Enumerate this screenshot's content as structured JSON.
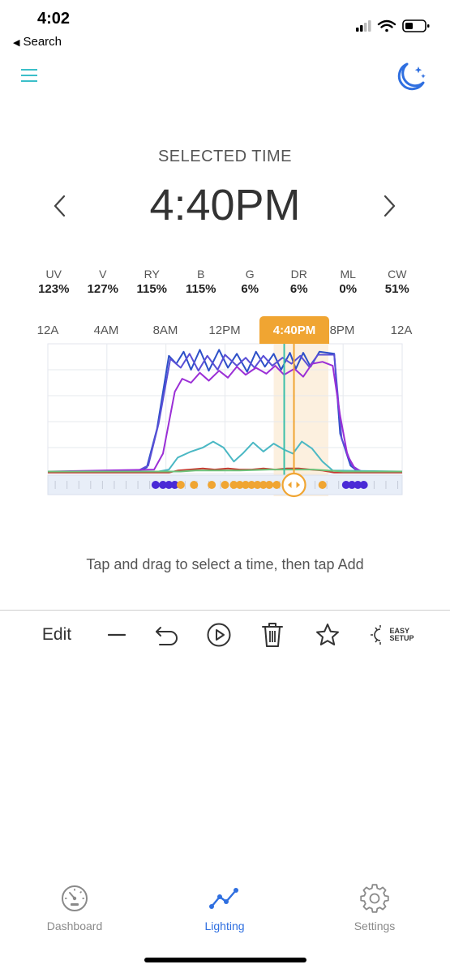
{
  "status_bar": {
    "time": "4:02",
    "back_label": "Search"
  },
  "header": {
    "selected_label": "SELECTED TIME",
    "selected_time": "4:40PM"
  },
  "channels": [
    {
      "name": "UV",
      "value": "123%"
    },
    {
      "name": "V",
      "value": "127%"
    },
    {
      "name": "RY",
      "value": "115%"
    },
    {
      "name": "B",
      "value": "115%"
    },
    {
      "name": "G",
      "value": "6%"
    },
    {
      "name": "DR",
      "value": "6%"
    },
    {
      "name": "ML",
      "value": "0%"
    },
    {
      "name": "CW",
      "value": "51%"
    }
  ],
  "timeline": {
    "labels": [
      "12A",
      "4AM",
      "8AM",
      "12PM",
      "8PM",
      "12A"
    ],
    "selected_badge": "4:40PM"
  },
  "hint": "Tap and drag to select a time, then tap Add",
  "toolbar": {
    "edit_label": "Edit",
    "easy_line1": "EASY",
    "easy_line2": "SETUP"
  },
  "tabs": [
    {
      "label": "Dashboard",
      "icon": "dashboard-gauge-icon"
    },
    {
      "label": "Lighting",
      "icon": "lighting-graph-icon"
    },
    {
      "label": "Settings",
      "icon": "settings-gear-icon"
    }
  ],
  "colors": {
    "accent": "#2f6fe0",
    "selection": "#f0a532",
    "menu": "#3bbfc9",
    "blue_series": "#2d50c8",
    "purple_series": "#9b2fd6",
    "teal_series": "#4bb8c4",
    "red_series": "#c43a2f",
    "green_series": "#6cc27a"
  },
  "chart_data": {
    "type": "line",
    "x_unit": "hour of day",
    "xlim": [
      0,
      24
    ],
    "ylim": [
      0,
      130
    ],
    "y_unit": "%",
    "grid": true,
    "selected_time_hours": 16.67,
    "selection_window_hours": [
      15.3,
      19.0
    ],
    "series": [
      {
        "color": "#2d50c8",
        "points": [
          [
            0,
            2
          ],
          [
            6,
            2
          ],
          [
            6.7,
            6
          ],
          [
            7.4,
            45
          ],
          [
            8.2,
            118
          ],
          [
            8.7,
            110
          ],
          [
            9.2,
            122
          ],
          [
            9.7,
            104
          ],
          [
            10.3,
            124
          ],
          [
            10.9,
            103
          ],
          [
            11.6,
            124
          ],
          [
            12.2,
            106
          ],
          [
            12.8,
            120
          ],
          [
            13.5,
            102
          ],
          [
            14.1,
            122
          ],
          [
            14.7,
            107
          ],
          [
            15.3,
            120
          ],
          [
            15.8,
            104
          ],
          [
            16.4,
            121
          ],
          [
            16.8,
            105
          ],
          [
            17.3,
            121
          ],
          [
            17.8,
            107
          ],
          [
            18.4,
            122
          ],
          [
            19.4,
            120
          ],
          [
            19.8,
            40
          ],
          [
            20.5,
            8
          ],
          [
            21,
            2
          ],
          [
            24,
            2
          ]
        ]
      },
      {
        "color": "#5a4fd6",
        "points": [
          [
            0,
            2
          ],
          [
            6,
            2
          ],
          [
            6.8,
            8
          ],
          [
            7.5,
            50
          ],
          [
            8.3,
            115
          ],
          [
            9.0,
            106
          ],
          [
            9.6,
            120
          ],
          [
            10.2,
            103
          ],
          [
            10.8,
            118
          ],
          [
            11.5,
            104
          ],
          [
            12.0,
            119
          ],
          [
            12.8,
            108
          ],
          [
            13.4,
            116
          ],
          [
            14.0,
            106
          ],
          [
            14.6,
            118
          ],
          [
            15.2,
            108
          ],
          [
            15.9,
            116
          ],
          [
            16.5,
            110
          ],
          [
            17.1,
            118
          ],
          [
            17.7,
            107
          ],
          [
            18.3,
            119
          ],
          [
            19.4,
            119
          ],
          [
            19.9,
            35
          ],
          [
            20.6,
            8
          ],
          [
            21.2,
            2
          ],
          [
            24,
            2
          ]
        ]
      },
      {
        "color": "#9b2fd6",
        "points": [
          [
            0,
            2
          ],
          [
            7.2,
            4
          ],
          [
            7.8,
            20
          ],
          [
            8.6,
            82
          ],
          [
            9.1,
            95
          ],
          [
            9.7,
            91
          ],
          [
            10.3,
            101
          ],
          [
            10.9,
            93
          ],
          [
            11.6,
            103
          ],
          [
            12.2,
            96
          ],
          [
            12.8,
            107
          ],
          [
            13.4,
            99
          ],
          [
            14.1,
            106
          ],
          [
            14.8,
            100
          ],
          [
            15.4,
            108
          ],
          [
            16.0,
            99
          ],
          [
            16.7,
            105
          ],
          [
            17.3,
            97
          ],
          [
            17.9,
            110
          ],
          [
            18.6,
            112
          ],
          [
            19.3,
            108
          ],
          [
            19.8,
            58
          ],
          [
            20.3,
            18
          ],
          [
            20.8,
            5
          ],
          [
            21.3,
            2
          ],
          [
            24,
            2
          ]
        ]
      },
      {
        "color": "#4bb8c4",
        "points": [
          [
            0,
            2
          ],
          [
            7.5,
            2
          ],
          [
            8.2,
            4
          ],
          [
            8.8,
            16
          ],
          [
            9.7,
            22
          ],
          [
            10.5,
            26
          ],
          [
            11.2,
            32
          ],
          [
            11.9,
            26
          ],
          [
            12.6,
            12
          ],
          [
            13.2,
            20
          ],
          [
            13.9,
            31
          ],
          [
            14.6,
            22
          ],
          [
            15.3,
            30
          ],
          [
            16.0,
            24
          ],
          [
            16.6,
            20
          ],
          [
            17.2,
            32
          ],
          [
            17.9,
            25
          ],
          [
            18.6,
            12
          ],
          [
            19.3,
            3
          ],
          [
            24,
            2
          ]
        ]
      },
      {
        "color": "#c43a2f",
        "points": [
          [
            0,
            1
          ],
          [
            8.2,
            1
          ],
          [
            8.8,
            3
          ],
          [
            9.6,
            4
          ],
          [
            10.5,
            5
          ],
          [
            11.3,
            4
          ],
          [
            12.2,
            5
          ],
          [
            13.0,
            4
          ],
          [
            13.8,
            4
          ],
          [
            14.6,
            5
          ],
          [
            15.4,
            4
          ],
          [
            16.2,
            5
          ],
          [
            17.0,
            5
          ],
          [
            17.8,
            4
          ],
          [
            18.6,
            3
          ],
          [
            19.4,
            1
          ],
          [
            24,
            1
          ]
        ]
      },
      {
        "color": "#6cc27a",
        "points": [
          [
            0,
            2
          ],
          [
            9,
            2
          ],
          [
            10,
            3
          ],
          [
            13,
            3
          ],
          [
            15,
            4
          ],
          [
            16.5,
            4
          ],
          [
            18,
            4
          ],
          [
            19,
            3
          ],
          [
            20,
            2
          ],
          [
            24,
            2
          ]
        ]
      }
    ],
    "markers": [
      {
        "hour": 7.3,
        "color": "#4a2ad6"
      },
      {
        "hour": 7.8,
        "color": "#4a2ad6"
      },
      {
        "hour": 8.2,
        "color": "#4a2ad6"
      },
      {
        "hour": 8.6,
        "color": "#4a2ad6"
      },
      {
        "hour": 9.0,
        "color": "#f0a532"
      },
      {
        "hour": 9.9,
        "color": "#f0a532"
      },
      {
        "hour": 11.1,
        "color": "#f0a532"
      },
      {
        "hour": 12.0,
        "color": "#f0a532"
      },
      {
        "hour": 12.6,
        "color": "#f0a532"
      },
      {
        "hour": 13.0,
        "color": "#f0a532"
      },
      {
        "hour": 13.4,
        "color": "#f0a532"
      },
      {
        "hour": 13.8,
        "color": "#f0a532"
      },
      {
        "hour": 14.2,
        "color": "#f0a532"
      },
      {
        "hour": 14.6,
        "color": "#f0a532"
      },
      {
        "hour": 15.0,
        "color": "#f0a532"
      },
      {
        "hour": 15.5,
        "color": "#f0a532"
      },
      {
        "hour": 18.6,
        "color": "#f0a532"
      },
      {
        "hour": 20.2,
        "color": "#4a2ad6"
      },
      {
        "hour": 20.6,
        "color": "#4a2ad6"
      },
      {
        "hour": 21.0,
        "color": "#4a2ad6"
      },
      {
        "hour": 21.4,
        "color": "#4a2ad6"
      }
    ]
  }
}
